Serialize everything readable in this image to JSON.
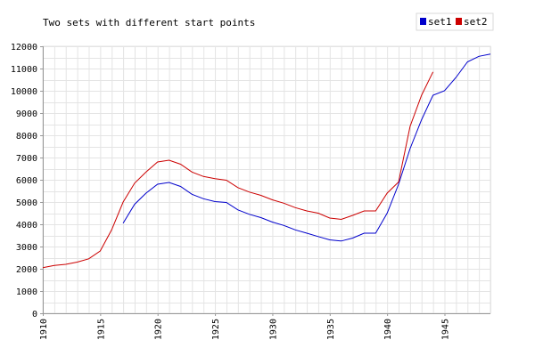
{
  "chart_data": {
    "type": "line",
    "title": "Two sets with different start points",
    "xlabel": "",
    "ylabel": "",
    "xlim": [
      1910,
      1949
    ],
    "ylim": [
      0,
      12000
    ],
    "yticks": [
      0,
      1000,
      2000,
      3000,
      4000,
      5000,
      6000,
      7000,
      8000,
      9000,
      10000,
      11000,
      12000
    ],
    "xticks": [
      1910,
      1915,
      1920,
      1925,
      1930,
      1935,
      1940,
      1945
    ],
    "grid": true,
    "legend": "top-right",
    "series": [
      {
        "name": "set1",
        "color": "#0000cc",
        "x": [
          1917,
          1918,
          1919,
          1920,
          1921,
          1922,
          1923,
          1924,
          1925,
          1926,
          1927,
          1928,
          1929,
          1930,
          1931,
          1932,
          1933,
          1934,
          1935,
          1936,
          1937,
          1938,
          1939,
          1940,
          1941,
          1942,
          1943,
          1944,
          1945,
          1946,
          1947,
          1948,
          1949
        ],
        "y": [
          4050,
          4900,
          5400,
          5800,
          5880,
          5700,
          5350,
          5150,
          5020,
          4980,
          4650,
          4450,
          4300,
          4100,
          3950,
          3750,
          3600,
          3450,
          3300,
          3250,
          3380,
          3600,
          3600,
          4500,
          5800,
          7400,
          8700,
          9800,
          10000,
          10600,
          11300,
          11550,
          11650
        ]
      },
      {
        "name": "set2",
        "color": "#cc0000",
        "x": [
          1910,
          1911,
          1912,
          1913,
          1914,
          1915,
          1916,
          1917,
          1918,
          1919,
          1920,
          1921,
          1922,
          1923,
          1924,
          1925,
          1926,
          1927,
          1928,
          1929,
          1930,
          1931,
          1932,
          1933,
          1934,
          1935,
          1936,
          1937,
          1938,
          1939,
          1940,
          1941,
          1942,
          1943,
          1944
        ],
        "y": [
          2050,
          2150,
          2200,
          2300,
          2450,
          2800,
          3750,
          5000,
          5850,
          6350,
          6800,
          6880,
          6700,
          6350,
          6150,
          6050,
          5980,
          5650,
          5450,
          5300,
          5100,
          4950,
          4750,
          4600,
          4500,
          4280,
          4220,
          4400,
          4600,
          4600,
          5400,
          5900,
          8400,
          9800,
          10850
        ]
      }
    ]
  }
}
